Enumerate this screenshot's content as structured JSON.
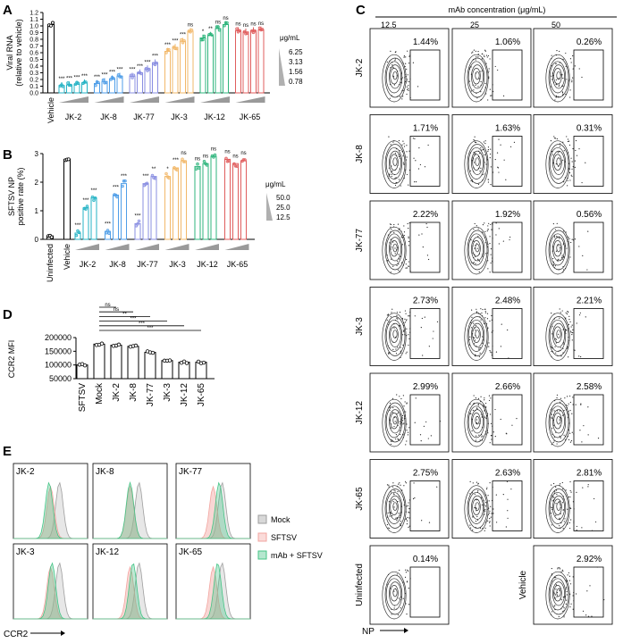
{
  "chart_data": [
    {
      "panel": "A",
      "type": "bar",
      "ylabel": "Viral RNA\n(relative to vehicle)",
      "ylim": [
        0,
        1.2
      ],
      "yticks": [
        "0.0",
        "0.1",
        "0.2",
        "0.3",
        "0.4",
        "0.5",
        "0.6",
        "0.7",
        "0.8",
        "0.9",
        "1.0",
        "1.1",
        "1.2"
      ],
      "legend_title": "μg/mL",
      "legend_levels": [
        "6.25",
        "3.13",
        "1.56",
        "0.78"
      ],
      "vehicle": {
        "label": "Vehicle",
        "value": 1.02
      },
      "groups": [
        {
          "label": "JK-2",
          "values": [
            0.11,
            0.12,
            0.13,
            0.15
          ],
          "sig": [
            "***",
            "***",
            "***",
            "***"
          ]
        },
        {
          "label": "JK-8",
          "values": [
            0.14,
            0.17,
            0.21,
            0.25
          ],
          "sig": [
            "***",
            "***",
            "***",
            "***"
          ]
        },
        {
          "label": "JK-77",
          "values": [
            0.25,
            0.3,
            0.36,
            0.45
          ],
          "sig": [
            "***",
            "***",
            "***",
            "***"
          ]
        },
        {
          "label": "JK-3",
          "values": [
            0.62,
            0.68,
            0.77,
            0.92
          ],
          "sig": [
            "***",
            "***",
            "***",
            "ns"
          ]
        },
        {
          "label": "JK-12",
          "values": [
            0.82,
            0.86,
            0.96,
            1.02
          ],
          "sig": [
            "*",
            "**",
            "ns",
            "ns"
          ]
        },
        {
          "label": "JK-65",
          "values": [
            0.93,
            0.91,
            0.93,
            0.94
          ],
          "sig": [
            "ns",
            "ns",
            "ns",
            "ns"
          ]
        }
      ]
    },
    {
      "panel": "B",
      "type": "bar",
      "ylabel": "SFTSV NP\npositive rate (%)",
      "ylim": [
        0,
        3
      ],
      "yticks": [
        "0",
        "1",
        "2",
        "3"
      ],
      "legend_title": "μg/mL",
      "legend_levels": [
        "50.0",
        "25.0",
        "12.5"
      ],
      "controls": [
        {
          "label": "Uninfected",
          "value": 0.12
        },
        {
          "label": "Vehicle",
          "value": 2.8
        }
      ],
      "groups": [
        {
          "label": "JK-2",
          "values": [
            0.22,
            1.1,
            1.45
          ],
          "sig": [
            "***",
            "***",
            "***"
          ]
        },
        {
          "label": "JK-8",
          "values": [
            0.28,
            1.55,
            1.95
          ],
          "sig": [
            "***",
            "***",
            "***"
          ]
        },
        {
          "label": "JK-77",
          "values": [
            0.55,
            1.95,
            2.2
          ],
          "sig": [
            "***",
            "***",
            "**"
          ]
        },
        {
          "label": "JK-3",
          "values": [
            2.2,
            2.5,
            2.75
          ],
          "sig": [
            "*",
            "***",
            "ns"
          ]
        },
        {
          "label": "JK-12",
          "values": [
            2.55,
            2.65,
            2.9
          ],
          "sig": [
            "ns",
            "ns",
            "ns"
          ]
        },
        {
          "label": "JK-65",
          "values": [
            2.8,
            2.65,
            2.75
          ],
          "sig": [
            "ns",
            "ns",
            "ns"
          ]
        }
      ]
    },
    {
      "panel": "C",
      "type": "flow-contour-grid",
      "title": "mAb concentration (μg/mL)",
      "concentrations": [
        "12.5",
        "25",
        "50"
      ],
      "xlabel": "NP",
      "rows": [
        {
          "label": "JK-2",
          "percents": [
            "1.44%",
            "1.06%",
            "0.26%"
          ]
        },
        {
          "label": "JK-8",
          "percents": [
            "1.71%",
            "1.63%",
            "0.31%"
          ]
        },
        {
          "label": "JK-77",
          "percents": [
            "2.22%",
            "1.92%",
            "0.56%"
          ]
        },
        {
          "label": "JK-3",
          "percents": [
            "2.73%",
            "2.48%",
            "2.21%"
          ]
        },
        {
          "label": "JK-12",
          "percents": [
            "2.99%",
            "2.66%",
            "2.58%"
          ]
        },
        {
          "label": "JK-65",
          "percents": [
            "2.75%",
            "2.63%",
            "2.81%"
          ]
        }
      ],
      "controls": [
        {
          "label": "Uninfected",
          "percent": "0.14%"
        },
        {
          "label": "Vehicle",
          "percent": "2.92%"
        }
      ]
    },
    {
      "panel": "D",
      "type": "bar",
      "ylabel": "CCR2 MFI",
      "ylim": [
        50000,
        200000
      ],
      "yticks": [
        "50000",
        "100000",
        "150000",
        "200000"
      ],
      "categories": [
        "SFTSV",
        "Mock",
        "JK-2",
        "JK-8",
        "JK-77",
        "JK-3",
        "JK-12",
        "JK-65"
      ],
      "values": [
        100000,
        176000,
        172000,
        168000,
        146000,
        116000,
        110000,
        110000
      ],
      "comparisons": [
        {
          "label": "ns",
          "from": "Mock",
          "to": "JK-2"
        },
        {
          "label": "ns",
          "from": "Mock",
          "to": "JK-8"
        },
        {
          "label": "**",
          "from": "Mock",
          "to": "JK-77"
        },
        {
          "label": "***",
          "from": "Mock",
          "to": "JK-3"
        },
        {
          "label": "***",
          "from": "Mock",
          "to": "JK-12"
        },
        {
          "label": "***",
          "from": "Mock",
          "to": "JK-65"
        }
      ]
    },
    {
      "panel": "E",
      "type": "histogram-overlay",
      "xlabel": "CCR2",
      "panels": [
        "JK-2",
        "JK-8",
        "JK-77",
        "JK-3",
        "JK-12",
        "JK-65"
      ],
      "legend": [
        {
          "label": "Mock",
          "color": "#9e9e9e"
        },
        {
          "label": "SFTSV",
          "color": "#f2a5a0"
        },
        {
          "label": "mAb + SFTSV",
          "color": "#45c486"
        }
      ]
    }
  ],
  "colors": {
    "JK-2": "#25b3c5",
    "JK-8": "#4f9ee8",
    "JK-77": "#8a8fe2",
    "JK-3": "#f2b86a",
    "JK-12": "#2fb57d",
    "JK-65": "#e05d5d"
  }
}
